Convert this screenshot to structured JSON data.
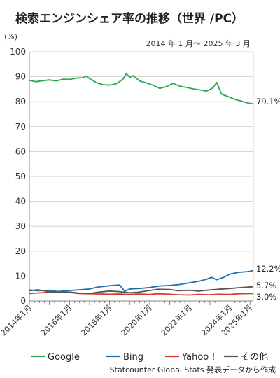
{
  "chart_data": {
    "type": "line",
    "title": "検索エンジンシェア率の推移（世界 /PC）",
    "subtitle": "2014 年 1 月〜 2025 年 3 月",
    "ylabel": "(%)",
    "ylim": [
      0,
      100
    ],
    "yticks": [
      0,
      10,
      20,
      30,
      40,
      50,
      60,
      70,
      80,
      90,
      100
    ],
    "x_start": "2014-01",
    "x_end": "2025-03",
    "xticks": [
      {
        "date": "2014-01",
        "label": "2014年1月"
      },
      {
        "date": "2016-01",
        "label": "2016年1月"
      },
      {
        "date": "2018-01",
        "label": "2018年1月"
      },
      {
        "date": "2020-01",
        "label": "2020年1月"
      },
      {
        "date": "2022-01",
        "label": "2022年1月"
      },
      {
        "date": "2024-01",
        "label": "2024年1月"
      },
      {
        "date": "2025-01",
        "label": "2025年1月"
      }
    ],
    "grid": true,
    "legend_position": "bottom",
    "source": "Statcounter Global Stats 発表データから作成",
    "series": [
      {
        "name": "Google",
        "color": "#2aa853",
        "end_label": "79.1%",
        "points": [
          [
            "2014-01",
            88.5
          ],
          [
            "2014-05",
            88.0
          ],
          [
            "2014-09",
            88.4
          ],
          [
            "2015-01",
            88.7
          ],
          [
            "2015-05",
            88.3
          ],
          [
            "2015-09",
            89.0
          ],
          [
            "2016-01",
            88.9
          ],
          [
            "2016-05",
            89.4
          ],
          [
            "2016-09",
            89.6
          ],
          [
            "2016-11",
            90.2
          ],
          [
            "2017-01",
            89.3
          ],
          [
            "2017-05",
            87.6
          ],
          [
            "2017-09",
            86.8
          ],
          [
            "2018-01",
            86.6
          ],
          [
            "2018-05",
            87.2
          ],
          [
            "2018-09",
            89.0
          ],
          [
            "2018-11",
            91.2
          ],
          [
            "2019-01",
            89.8
          ],
          [
            "2019-03",
            90.4
          ],
          [
            "2019-07",
            88.3
          ],
          [
            "2019-11",
            87.5
          ],
          [
            "2020-03",
            86.6
          ],
          [
            "2020-07",
            85.3
          ],
          [
            "2020-11",
            86.0
          ],
          [
            "2021-03",
            87.3
          ],
          [
            "2021-07",
            86.2
          ],
          [
            "2021-11",
            85.7
          ],
          [
            "2022-03",
            85.1
          ],
          [
            "2022-07",
            84.7
          ],
          [
            "2022-11",
            84.2
          ],
          [
            "2023-03",
            85.6
          ],
          [
            "2023-05",
            87.7
          ],
          [
            "2023-08",
            83.0
          ],
          [
            "2023-12",
            82.0
          ],
          [
            "2024-04",
            80.9
          ],
          [
            "2024-08",
            80.2
          ],
          [
            "2024-12",
            79.4
          ],
          [
            "2025-03",
            79.1
          ]
        ]
      },
      {
        "name": "Bing",
        "color": "#1f6fb0",
        "end_label": "12.2%",
        "points": [
          [
            "2014-01",
            4.4
          ],
          [
            "2014-06",
            4.1
          ],
          [
            "2015-01",
            4.3
          ],
          [
            "2015-06",
            3.8
          ],
          [
            "2016-01",
            4.2
          ],
          [
            "2016-06",
            4.4
          ],
          [
            "2017-01",
            4.8
          ],
          [
            "2017-06",
            5.6
          ],
          [
            "2018-01",
            6.1
          ],
          [
            "2018-07",
            6.4
          ],
          [
            "2018-10",
            3.9
          ],
          [
            "2019-01",
            4.8
          ],
          [
            "2019-07",
            5.0
          ],
          [
            "2020-01",
            5.4
          ],
          [
            "2020-07",
            6.0
          ],
          [
            "2021-01",
            6.2
          ],
          [
            "2021-07",
            6.6
          ],
          [
            "2022-01",
            7.3
          ],
          [
            "2022-07",
            8.0
          ],
          [
            "2022-11",
            8.7
          ],
          [
            "2023-02",
            9.5
          ],
          [
            "2023-05",
            8.5
          ],
          [
            "2023-09",
            9.4
          ],
          [
            "2024-01",
            10.8
          ],
          [
            "2024-06",
            11.5
          ],
          [
            "2024-12",
            11.8
          ],
          [
            "2025-03",
            12.2
          ]
        ]
      },
      {
        "name": "Yahoo !",
        "color": "#d63b2f",
        "end_label": "3.0%",
        "points": [
          [
            "2014-01",
            3.0
          ],
          [
            "2014-06",
            3.2
          ],
          [
            "2015-01",
            3.5
          ],
          [
            "2015-06",
            3.6
          ],
          [
            "2016-01",
            3.4
          ],
          [
            "2016-06",
            3.0
          ],
          [
            "2017-01",
            2.9
          ],
          [
            "2017-06",
            2.8
          ],
          [
            "2018-01",
            2.7
          ],
          [
            "2018-06",
            2.8
          ],
          [
            "2019-01",
            2.6
          ],
          [
            "2019-06",
            2.8
          ],
          [
            "2020-01",
            2.6
          ],
          [
            "2020-06",
            2.9
          ],
          [
            "2021-01",
            2.7
          ],
          [
            "2021-06",
            2.5
          ],
          [
            "2022-01",
            2.4
          ],
          [
            "2022-06",
            2.6
          ],
          [
            "2023-01",
            2.5
          ],
          [
            "2023-06",
            2.7
          ],
          [
            "2024-01",
            2.6
          ],
          [
            "2024-06",
            2.9
          ],
          [
            "2025-03",
            3.0
          ]
        ]
      },
      {
        "name": "その他",
        "color": "#555555",
        "end_label": "5.7%",
        "points": [
          [
            "2014-01",
            4.1
          ],
          [
            "2014-06",
            4.5
          ],
          [
            "2015-01",
            3.7
          ],
          [
            "2015-06",
            3.5
          ],
          [
            "2016-01",
            3.6
          ],
          [
            "2016-06",
            3.2
          ],
          [
            "2017-01",
            3.0
          ],
          [
            "2017-06",
            3.5
          ],
          [
            "2018-01",
            4.0
          ],
          [
            "2018-06",
            3.8
          ],
          [
            "2019-01",
            3.3
          ],
          [
            "2019-06",
            3.5
          ],
          [
            "2020-01",
            4.2
          ],
          [
            "2020-06",
            4.7
          ],
          [
            "2021-01",
            4.6
          ],
          [
            "2021-06",
            4.1
          ],
          [
            "2022-01",
            4.3
          ],
          [
            "2022-06",
            4.0
          ],
          [
            "2023-01",
            4.4
          ],
          [
            "2023-06",
            4.7
          ],
          [
            "2024-01",
            5.0
          ],
          [
            "2024-06",
            5.3
          ],
          [
            "2025-03",
            5.7
          ]
        ]
      }
    ]
  }
}
